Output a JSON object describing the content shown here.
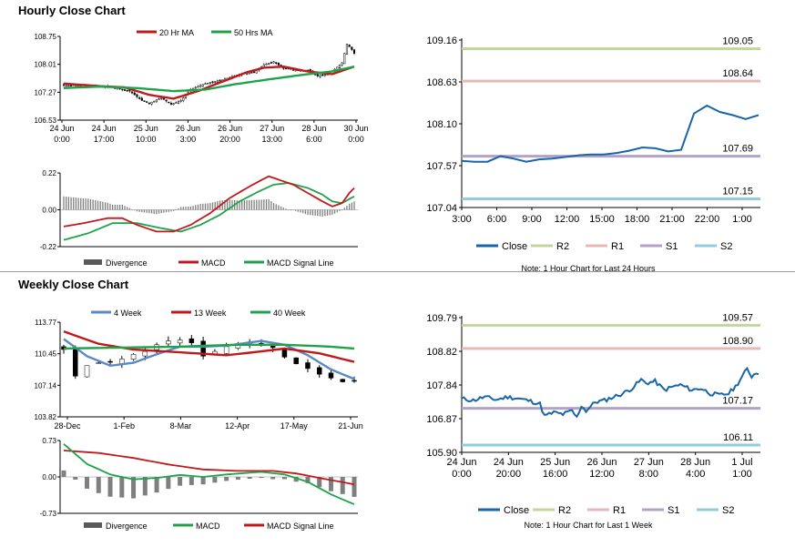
{
  "sections": {
    "hourly_title": "Hourly Close Chart",
    "weekly_title": "Weekly Close Chart"
  },
  "chart_data": [
    {
      "id": "hourly_candles",
      "type": "candlestick",
      "legend": [
        "20 Hr MA",
        "50 Hrs MA"
      ],
      "legend_colors": [
        "#c0191c",
        "#1fa34a"
      ],
      "y_ticks": [
        "108.75",
        "108.01",
        "107.27",
        "106.53"
      ],
      "ylim": [
        106.53,
        108.75
      ],
      "x_ticks": [
        [
          "24 Jun",
          "0:00"
        ],
        [
          "24 Jun",
          "17:00"
        ],
        [
          "25 Jun",
          "10:00"
        ],
        [
          "26 Jun",
          "3:00"
        ],
        [
          "26 Jun",
          "20:00"
        ],
        [
          "27 Jun",
          "13:00"
        ],
        [
          "28 Jun",
          "6:00"
        ],
        [
          "30 Jun",
          "0:00"
        ]
      ],
      "n_bars": 120,
      "close_anchors": [
        [
          0,
          107.45
        ],
        [
          10,
          107.45
        ],
        [
          20,
          107.4
        ],
        [
          27,
          107.3
        ],
        [
          32,
          107.05
        ],
        [
          35,
          106.98
        ],
        [
          40,
          107.12
        ],
        [
          44,
          106.95
        ],
        [
          48,
          107.05
        ],
        [
          52,
          107.35
        ],
        [
          58,
          107.5
        ],
        [
          65,
          107.6
        ],
        [
          72,
          107.75
        ],
        [
          78,
          107.8
        ],
        [
          82,
          108.0
        ],
        [
          86,
          108.08
        ],
        [
          90,
          107.9
        ],
        [
          96,
          107.85
        ],
        [
          100,
          107.85
        ],
        [
          104,
          107.7
        ],
        [
          108,
          107.75
        ],
        [
          111,
          107.88
        ],
        [
          114,
          108.05
        ],
        [
          116,
          108.55
        ],
        [
          118,
          108.4
        ],
        [
          119,
          108.3
        ]
      ],
      "ma_fast": [
        [
          0,
          107.5
        ],
        [
          15,
          107.43
        ],
        [
          25,
          107.4
        ],
        [
          35,
          107.2
        ],
        [
          45,
          107.1
        ],
        [
          55,
          107.3
        ],
        [
          65,
          107.55
        ],
        [
          75,
          107.8
        ],
        [
          82,
          107.92
        ],
        [
          90,
          107.95
        ],
        [
          100,
          107.82
        ],
        [
          110,
          107.75
        ],
        [
          119,
          107.95
        ]
      ],
      "ma_slow": [
        [
          0,
          107.38
        ],
        [
          15,
          107.42
        ],
        [
          30,
          107.38
        ],
        [
          45,
          107.3
        ],
        [
          58,
          107.34
        ],
        [
          70,
          107.48
        ],
        [
          85,
          107.62
        ],
        [
          100,
          107.75
        ],
        [
          110,
          107.82
        ],
        [
          119,
          107.95
        ]
      ]
    },
    {
      "id": "hourly_macd",
      "type": "macd",
      "y_ticks": [
        "0.22",
        "0.00",
        "-0.22"
      ],
      "ylim": [
        -0.22,
        0.22
      ],
      "legend": [
        "Divergence",
        "MACD",
        "MACD Signal Line"
      ],
      "legend_colors": [
        "#595959",
        "#c0191c",
        "#1fa34a"
      ],
      "n_bars": 120,
      "macd": [
        [
          0,
          -0.1
        ],
        [
          8,
          -0.08
        ],
        [
          18,
          -0.05
        ],
        [
          24,
          -0.05
        ],
        [
          30,
          -0.09
        ],
        [
          38,
          -0.13
        ],
        [
          45,
          -0.13
        ],
        [
          52,
          -0.09
        ],
        [
          60,
          -0.02
        ],
        [
          68,
          0.07
        ],
        [
          75,
          0.13
        ],
        [
          80,
          0.17
        ],
        [
          84,
          0.2
        ],
        [
          88,
          0.18
        ],
        [
          94,
          0.15
        ],
        [
          100,
          0.1
        ],
        [
          106,
          0.05
        ],
        [
          110,
          0.02
        ],
        [
          114,
          0.04
        ],
        [
          117,
          0.1
        ],
        [
          119,
          0.13
        ]
      ],
      "signal": [
        [
          0,
          -0.18
        ],
        [
          10,
          -0.14
        ],
        [
          20,
          -0.08
        ],
        [
          30,
          -0.08
        ],
        [
          40,
          -0.11
        ],
        [
          48,
          -0.13
        ],
        [
          56,
          -0.09
        ],
        [
          64,
          -0.03
        ],
        [
          72,
          0.05
        ],
        [
          80,
          0.11
        ],
        [
          86,
          0.15
        ],
        [
          92,
          0.16
        ],
        [
          100,
          0.13
        ],
        [
          106,
          0.09
        ],
        [
          110,
          0.05
        ],
        [
          114,
          0.04
        ],
        [
          119,
          0.08
        ]
      ]
    },
    {
      "id": "hourly_close_levels",
      "type": "line",
      "y_ticks": [
        "109.16",
        "108.63",
        "108.10",
        "107.57",
        "107.04"
      ],
      "ylim": [
        107.04,
        109.16
      ],
      "x_ticks": [
        "3:00",
        "6:00",
        "9:00",
        "12:00",
        "15:00",
        "18:00",
        "21:00",
        "22:00",
        "1:00"
      ],
      "levels": [
        {
          "name": "R2",
          "value": 109.05,
          "label": "109.05",
          "color": "#c3d69b"
        },
        {
          "name": "R1",
          "value": 108.64,
          "label": "108.64",
          "color": "#e6b9b8"
        },
        {
          "name": "S1",
          "value": 107.69,
          "label": "107.69",
          "color": "#b3a2c7"
        },
        {
          "name": "S2",
          "value": 107.15,
          "label": "107.15",
          "color": "#93cddd"
        }
      ],
      "close": [
        107.63,
        107.62,
        107.62,
        107.69,
        107.66,
        107.62,
        107.65,
        107.66,
        107.68,
        107.7,
        107.71,
        107.71,
        107.73,
        107.76,
        107.8,
        107.79,
        107.75,
        107.77,
        108.23,
        108.33,
        108.25,
        108.21,
        108.16,
        108.21
      ],
      "legend": [
        "Close",
        "R2",
        "R1",
        "S1",
        "S2"
      ],
      "close_color": "#1766a8",
      "note": "Note: 1 Hour Chart for Last 24 Hours"
    },
    {
      "id": "weekly_candles",
      "type": "candlestick",
      "legend": [
        "4 Week",
        "13 Week",
        "40 Week"
      ],
      "legend_colors": [
        "#5a8ac6",
        "#c0191c",
        "#1fa34a"
      ],
      "y_ticks": [
        "113.77",
        "110.45",
        "107.14",
        "103.82"
      ],
      "ylim": [
        103.82,
        113.77
      ],
      "x_ticks": [
        "28-Dec",
        "1-Feb",
        "8-Mar",
        "12-Apr",
        "17-May",
        "21-Jun"
      ],
      "n_bars": 26,
      "closes": [
        110.9,
        108.1,
        109.2,
        109.5,
        109.6,
        109.9,
        110.4,
        110.7,
        111.4,
        111.8,
        111.9,
        111.6,
        110.2,
        110.7,
        111.2,
        111.5,
        111.7,
        111.5,
        111.1,
        110.1,
        109.4,
        108.9,
        108.3,
        107.9,
        107.5,
        107.6
      ],
      "ma4": [
        [
          0,
          112.0
        ],
        [
          2,
          110.2
        ],
        [
          4,
          109.2
        ],
        [
          6,
          109.5
        ],
        [
          8,
          110.4
        ],
        [
          10,
          111.2
        ],
        [
          12,
          111.2
        ],
        [
          14,
          111.3
        ],
        [
          17,
          111.8
        ],
        [
          19,
          111.4
        ],
        [
          21,
          110.3
        ],
        [
          23,
          108.8
        ],
        [
          25,
          107.8
        ]
      ],
      "ma13": [
        [
          0,
          112.8
        ],
        [
          3,
          111.5
        ],
        [
          6,
          110.9
        ],
        [
          10,
          110.6
        ],
        [
          14,
          110.3
        ],
        [
          17,
          110.7
        ],
        [
          19,
          111.0
        ],
        [
          22,
          110.5
        ],
        [
          25,
          109.6
        ]
      ],
      "ma40": [
        [
          0,
          111.0
        ],
        [
          5,
          111.1
        ],
        [
          10,
          111.2
        ],
        [
          15,
          111.4
        ],
        [
          19,
          111.4
        ],
        [
          23,
          111.2
        ],
        [
          25,
          111.0
        ]
      ]
    },
    {
      "id": "weekly_macd",
      "type": "macd",
      "y_ticks": [
        "0.73",
        "0.00",
        "-0.73"
      ],
      "ylim": [
        -0.73,
        0.73
      ],
      "legend": [
        "Divergence",
        "MACD",
        "MACD Signal Line"
      ],
      "legend_colors": [
        "#595959",
        "#1fa34a",
        "#c0191c"
      ],
      "n_bars": 26,
      "macd": [
        [
          0,
          0.66
        ],
        [
          2,
          0.26
        ],
        [
          4,
          0.05
        ],
        [
          6,
          -0.05
        ],
        [
          8,
          -0.02
        ],
        [
          10,
          0.04
        ],
        [
          12,
          0.0
        ],
        [
          14,
          0.05
        ],
        [
          17,
          0.1
        ],
        [
          19,
          0.05
        ],
        [
          21,
          -0.1
        ],
        [
          23,
          -0.35
        ],
        [
          25,
          -0.55
        ]
      ],
      "signal": [
        [
          0,
          0.53
        ],
        [
          3,
          0.48
        ],
        [
          6,
          0.38
        ],
        [
          9,
          0.25
        ],
        [
          12,
          0.15
        ],
        [
          15,
          0.12
        ],
        [
          18,
          0.12
        ],
        [
          20,
          0.07
        ],
        [
          22,
          -0.02
        ],
        [
          25,
          -0.15
        ]
      ]
    },
    {
      "id": "weekly_close_levels",
      "type": "line",
      "y_ticks": [
        "109.79",
        "108.82",
        "107.84",
        "106.87",
        "105.90"
      ],
      "ylim": [
        105.9,
        109.79
      ],
      "x_ticks": [
        [
          "24 Jun",
          "0:00"
        ],
        [
          "24 Jun",
          "20:00"
        ],
        [
          "25 Jun",
          "16:00"
        ],
        [
          "26 Jun",
          "12:00"
        ],
        [
          "27 Jun",
          "8:00"
        ],
        [
          "28 Jun",
          "4:00"
        ],
        [
          "1 Jul",
          "1:00"
        ]
      ],
      "levels": [
        {
          "name": "R2",
          "value": 109.57,
          "label": "109.57",
          "color": "#c3d69b"
        },
        {
          "name": "R1",
          "value": 108.9,
          "label": "108.90",
          "color": "#e6b9b8"
        },
        {
          "name": "S1",
          "value": 107.17,
          "label": "107.17",
          "color": "#b3a2c7"
        },
        {
          "name": "S2",
          "value": 106.11,
          "label": "106.11",
          "color": "#93cddd"
        }
      ],
      "close_anchors": [
        [
          0,
          107.45
        ],
        [
          5,
          107.4
        ],
        [
          10,
          107.5
        ],
        [
          15,
          107.42
        ],
        [
          20,
          107.5
        ],
        [
          25,
          107.45
        ],
        [
          30,
          107.38
        ],
        [
          34,
          107.3
        ],
        [
          36,
          106.95
        ],
        [
          40,
          107.05
        ],
        [
          44,
          107.0
        ],
        [
          48,
          107.1
        ],
        [
          50,
          106.9
        ],
        [
          52,
          107.25
        ],
        [
          54,
          107.1
        ],
        [
          58,
          107.35
        ],
        [
          62,
          107.4
        ],
        [
          66,
          107.5
        ],
        [
          70,
          107.6
        ],
        [
          74,
          107.75
        ],
        [
          78,
          108.0
        ],
        [
          80,
          107.9
        ],
        [
          84,
          107.95
        ],
        [
          88,
          107.7
        ],
        [
          92,
          107.8
        ],
        [
          95,
          107.85
        ],
        [
          100,
          107.7
        ],
        [
          104,
          107.75
        ],
        [
          108,
          107.6
        ],
        [
          112,
          107.55
        ],
        [
          116,
          107.6
        ],
        [
          119,
          107.8
        ],
        [
          121,
          108.0
        ],
        [
          124,
          108.3
        ],
        [
          126,
          108.1
        ],
        [
          128,
          108.2
        ]
      ],
      "n_points": 130,
      "legend": [
        "Close",
        "R2",
        "R1",
        "S1",
        "S2"
      ],
      "close_color": "#1766a8",
      "note": "Note: 1 Hour Chart for Last 1 Week"
    }
  ]
}
